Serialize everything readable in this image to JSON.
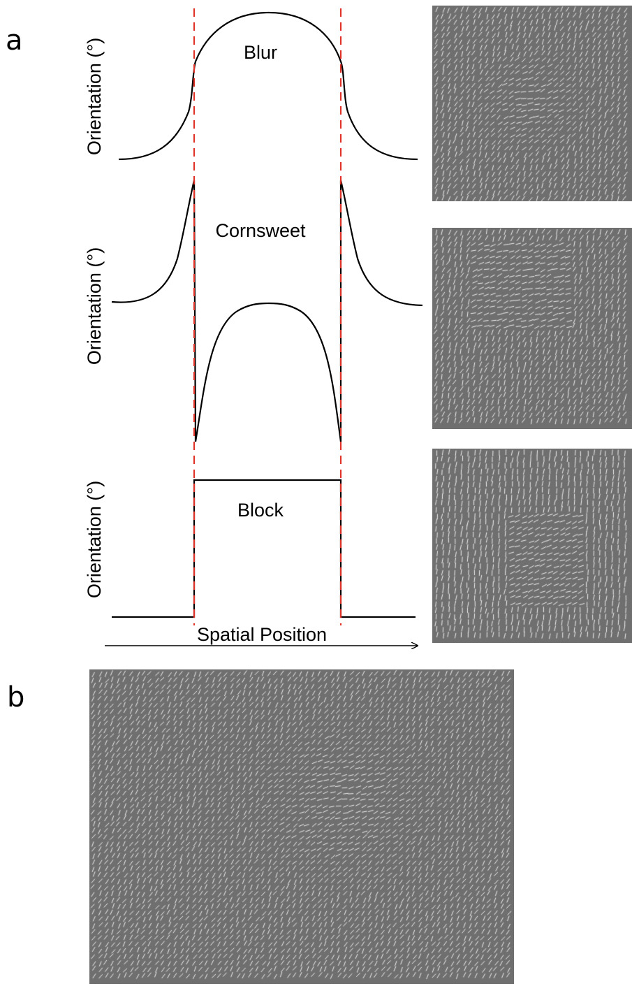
{
  "panels": {
    "a": {
      "letter": "a"
    },
    "b": {
      "letter": "b"
    }
  },
  "plots": {
    "y_label": "Orientation (°)",
    "x_label": "Spatial Position",
    "profiles": [
      {
        "label": "Blur"
      },
      {
        "label": "Cornsweet"
      },
      {
        "label": "Block"
      }
    ]
  },
  "colors": {
    "profile_line": "#000000",
    "edge_marker": "#e0332a",
    "texture_background": "#6f6f6f",
    "texture_line": "#f2f2f2"
  }
}
